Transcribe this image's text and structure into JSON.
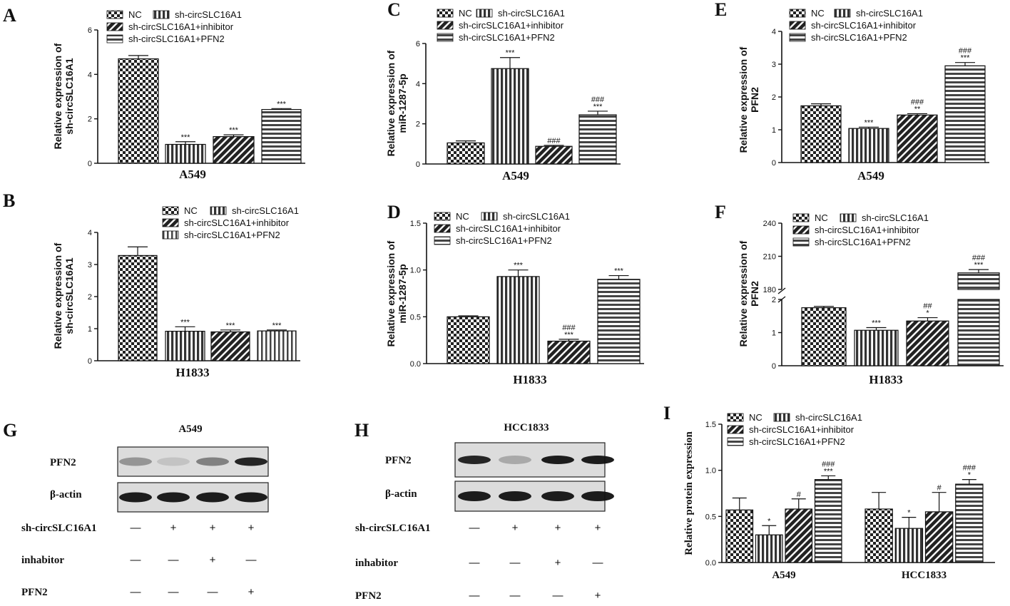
{
  "legend_labels": {
    "nc": "NC",
    "sh": "sh-circSLC16A1",
    "inh": "sh-circSLC16A1+inhibitor",
    "pfn2": "sh-circSLC16A1+PFN2"
  },
  "colors": {
    "ink": "#111111",
    "background": "#ffffff"
  },
  "chart_data": [
    {
      "id": "A",
      "type": "bar",
      "panel_letter": "A",
      "ylabel_lines": [
        "Relative  expression of",
        "sh-circSLC16A1"
      ],
      "xlabel": "A549",
      "ylim": [
        0,
        6
      ],
      "yticks": [
        "0",
        "2",
        "4",
        "6"
      ],
      "categories": [
        "NC",
        "sh-circSLC16A1",
        "sh-circSLC16A1+inhibitor",
        "sh-circSLC16A1+PFN2"
      ],
      "values": [
        4.7,
        0.85,
        1.2,
        2.42
      ],
      "errors": [
        0.15,
        0.12,
        0.08,
        0.04
      ],
      "annotations": [
        [],
        [
          "***"
        ],
        [
          "***"
        ],
        [
          "***"
        ]
      ]
    },
    {
      "id": "B",
      "type": "bar",
      "panel_letter": "B",
      "ylabel_lines": [
        "Relative  expression of",
        "sh-circSLC16A1"
      ],
      "xlabel": "H1833",
      "ylim": [
        0,
        4
      ],
      "yticks": [
        "0",
        "1",
        "2",
        "3",
        "4"
      ],
      "categories": [
        "NC",
        "sh-circSLC16A1",
        "sh-circSLC16A1+inhibitor",
        "sh-circSLC16A1+PFN2"
      ],
      "values": [
        3.28,
        0.92,
        0.9,
        0.93
      ],
      "errors": [
        0.27,
        0.14,
        0.06,
        0.03
      ],
      "annotations": [
        [],
        [
          "***"
        ],
        [
          "***"
        ],
        [
          "***"
        ]
      ]
    },
    {
      "id": "C",
      "type": "bar",
      "panel_letter": "C",
      "ylabel_lines": [
        "Relative  expression of",
        "miR-1287-5p"
      ],
      "xlabel": "A549",
      "ylim": [
        0,
        6
      ],
      "yticks": [
        "0",
        "2",
        "4",
        "6"
      ],
      "categories": [
        "NC",
        "sh-circSLC16A1",
        "sh-circSLC16A1+inhibitor",
        "sh-circSLC16A1+PFN2"
      ],
      "values": [
        1.05,
        4.75,
        0.88,
        2.45
      ],
      "errors": [
        0.1,
        0.55,
        0.05,
        0.18
      ],
      "annotations": [
        [],
        [
          "***"
        ],
        [
          "###"
        ],
        [
          "###",
          "***"
        ]
      ]
    },
    {
      "id": "D",
      "type": "bar",
      "panel_letter": "D",
      "ylabel_lines": [
        "Relative  expression of",
        "miR-1287-5p"
      ],
      "xlabel": "H1833",
      "ylim": [
        0,
        1.5
      ],
      "yticks": [
        "0.0",
        "0.5",
        "1.0",
        "1.5"
      ],
      "categories": [
        "NC",
        "sh-circSLC16A1",
        "sh-circSLC16A1+inhibitor",
        "sh-circSLC16A1+PFN2"
      ],
      "values": [
        0.5,
        0.93,
        0.24,
        0.9
      ],
      "errors": [
        0.01,
        0.07,
        0.02,
        0.04
      ],
      "annotations": [
        [],
        [
          "***"
        ],
        [
          "###",
          "***"
        ],
        [
          "***"
        ]
      ]
    },
    {
      "id": "E",
      "type": "bar",
      "panel_letter": "E",
      "ylabel_lines": [
        "Relative  expression of",
        "PFN2"
      ],
      "xlabel": "A549",
      "ylim": [
        0,
        4
      ],
      "yticks": [
        "0",
        "1",
        "2",
        "3",
        "4"
      ],
      "categories": [
        "NC",
        "sh-circSLC16A1",
        "sh-circSLC16A1+inhibitor",
        "sh-circSLC16A1+PFN2"
      ],
      "values": [
        1.73,
        1.04,
        1.45,
        2.95
      ],
      "errors": [
        0.06,
        0.04,
        0.04,
        0.1
      ],
      "annotations": [
        [],
        [
          "***"
        ],
        [
          "###",
          "**"
        ],
        [
          "###",
          "***"
        ]
      ]
    },
    {
      "id": "F",
      "type": "bar",
      "panel_letter": "F",
      "ylabel_lines": [
        "Relative  expression of",
        "PFN2"
      ],
      "xlabel": "H1833",
      "broken_axis": true,
      "lower_ylim": [
        0,
        2
      ],
      "lower_yticks": [
        "0",
        "1",
        "2"
      ],
      "upper_ylim": [
        180,
        240
      ],
      "upper_yticks": [
        "180",
        "210",
        "240"
      ],
      "categories": [
        "NC",
        "sh-circSLC16A1",
        "sh-circSLC16A1+inhibitor",
        "sh-circSLC16A1+PFN2"
      ],
      "values": [
        1.75,
        1.07,
        1.35,
        195
      ],
      "errors": [
        0.04,
        0.08,
        0.1,
        3
      ],
      "annotations": [
        [],
        [
          "***"
        ],
        [
          "##",
          "*"
        ],
        [
          "###",
          "***"
        ]
      ]
    },
    {
      "id": "I",
      "type": "bar",
      "panel_letter": "I",
      "ylabel_lines": [
        "Relative protein expression"
      ],
      "categories": [
        "A549",
        "HCC1833"
      ],
      "ylim": [
        0,
        1.5
      ],
      "yticks": [
        "0.0",
        "0.5",
        "1.0",
        "1.5"
      ],
      "series": [
        {
          "name": "NC",
          "values": [
            0.57,
            0.58
          ],
          "errors": [
            0.13,
            0.18
          ],
          "annotations": [
            [],
            []
          ]
        },
        {
          "name": "sh-circSLC16A1",
          "values": [
            0.3,
            0.37
          ],
          "errors": [
            0.1,
            0.12
          ],
          "annotations": [
            [
              "*"
            ],
            [
              "*"
            ]
          ]
        },
        {
          "name": "sh-circSLC16A1+inhibitor",
          "values": [
            0.58,
            0.55
          ],
          "errors": [
            0.11,
            0.21
          ],
          "annotations": [
            [
              "#"
            ],
            [
              "#"
            ]
          ]
        },
        {
          "name": "sh-circSLC16A1+PFN2",
          "values": [
            0.9,
            0.85
          ],
          "errors": [
            0.04,
            0.05
          ],
          "annotations": [
            [
              "###",
              "***"
            ],
            [
              "###",
              "*"
            ]
          ]
        }
      ]
    }
  ],
  "western_blots": [
    {
      "id": "G",
      "panel_letter": "G",
      "title": "A549",
      "bands": [
        {
          "label": "PFN2",
          "intensities": [
            0.35,
            0.12,
            0.45,
            0.9
          ]
        },
        {
          "label": "β-actin",
          "intensities": [
            0.95,
            0.95,
            0.95,
            0.95
          ]
        }
      ],
      "rows": [
        {
          "label": "sh-circSLC16A1",
          "signs": [
            "—",
            "+",
            "+",
            "+"
          ]
        },
        {
          "label": "inhabitor",
          "signs": [
            "—",
            "—",
            "+",
            "—"
          ]
        },
        {
          "label": "PFN2",
          "signs": [
            "—",
            "—",
            "—",
            "+"
          ]
        }
      ]
    },
    {
      "id": "H",
      "panel_letter": "H",
      "title": "HCC1833",
      "bands": [
        {
          "label": "PFN2",
          "intensities": [
            0.9,
            0.25,
            0.95,
            0.95
          ]
        },
        {
          "label": "β-actin",
          "intensities": [
            0.95,
            0.95,
            0.95,
            0.95
          ]
        }
      ],
      "rows": [
        {
          "label": "sh-circSLC16A1",
          "signs": [
            "—",
            "+",
            "+",
            "+"
          ]
        },
        {
          "label": "inhabitor",
          "signs": [
            "—",
            "—",
            "+",
            "—"
          ]
        },
        {
          "label": "PFN2",
          "signs": [
            "—",
            "—",
            "—",
            "+"
          ]
        }
      ]
    }
  ]
}
